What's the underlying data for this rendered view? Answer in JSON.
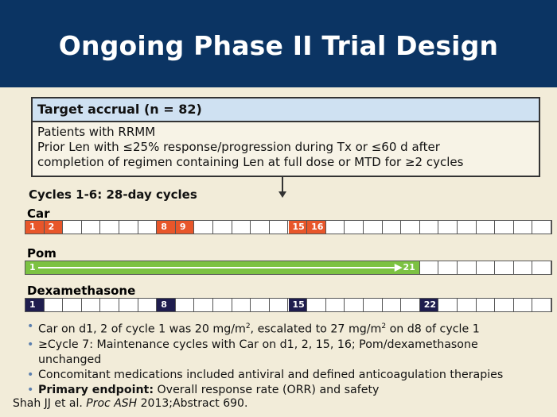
{
  "title": "Ongoing Phase II Trial Design",
  "eligibility": {
    "header": "Target accrual (n = 82)",
    "lines": [
      "Patients with RRMM",
      "Prior Len with ≤25% response/progression during Tx or ≤60 d after",
      "completion of regimen containing Len at full dose or MTD for ≥2 cycles"
    ]
  },
  "cycles_label": "Cycles 1-6: 28-day cycles",
  "regimens": {
    "car": {
      "label": "Car",
      "color": "#e8562a",
      "dose_days": [
        "1",
        "2",
        "8",
        "9",
        "15",
        "16"
      ]
    },
    "pom": {
      "label": "Pom",
      "color": "#7cc242",
      "start_day": "1",
      "end_day": "21"
    },
    "dex": {
      "label": "Dexamethasone",
      "color": "#1f1d4e",
      "dose_days": [
        "1",
        "8",
        "15",
        "22"
      ]
    }
  },
  "bullets": {
    "b1_a": "Car on d1, 2 of cycle 1 was 20 mg/m",
    "b1_sup1": "2",
    "b1_b": ", escalated to 27 mg/m",
    "b1_sup2": "2",
    "b1_c": " on d8 of cycle 1",
    "b2_line1": "≥Cycle 7: Maintenance cycles with Car on d1, 2, 15, 16; Pom/dexamethasone",
    "b2_line2": "unchanged",
    "b3": "Concomitant medications included antiviral and defined anticoagulation therapies",
    "b4_bold": "Primary endpoint:",
    "b4_rest": " Overall response rate (ORR) and safety"
  },
  "citation": {
    "authors": "Shah JJ et al. ",
    "journal": "Proc ASH",
    "rest": " 2013;Abstract 690."
  },
  "colors": {
    "header_bg": "#0b3463",
    "slide_bg": "#f2ecd9",
    "box_header_bg": "#cfe1f2",
    "bullet_dot": "#5b7fae"
  }
}
